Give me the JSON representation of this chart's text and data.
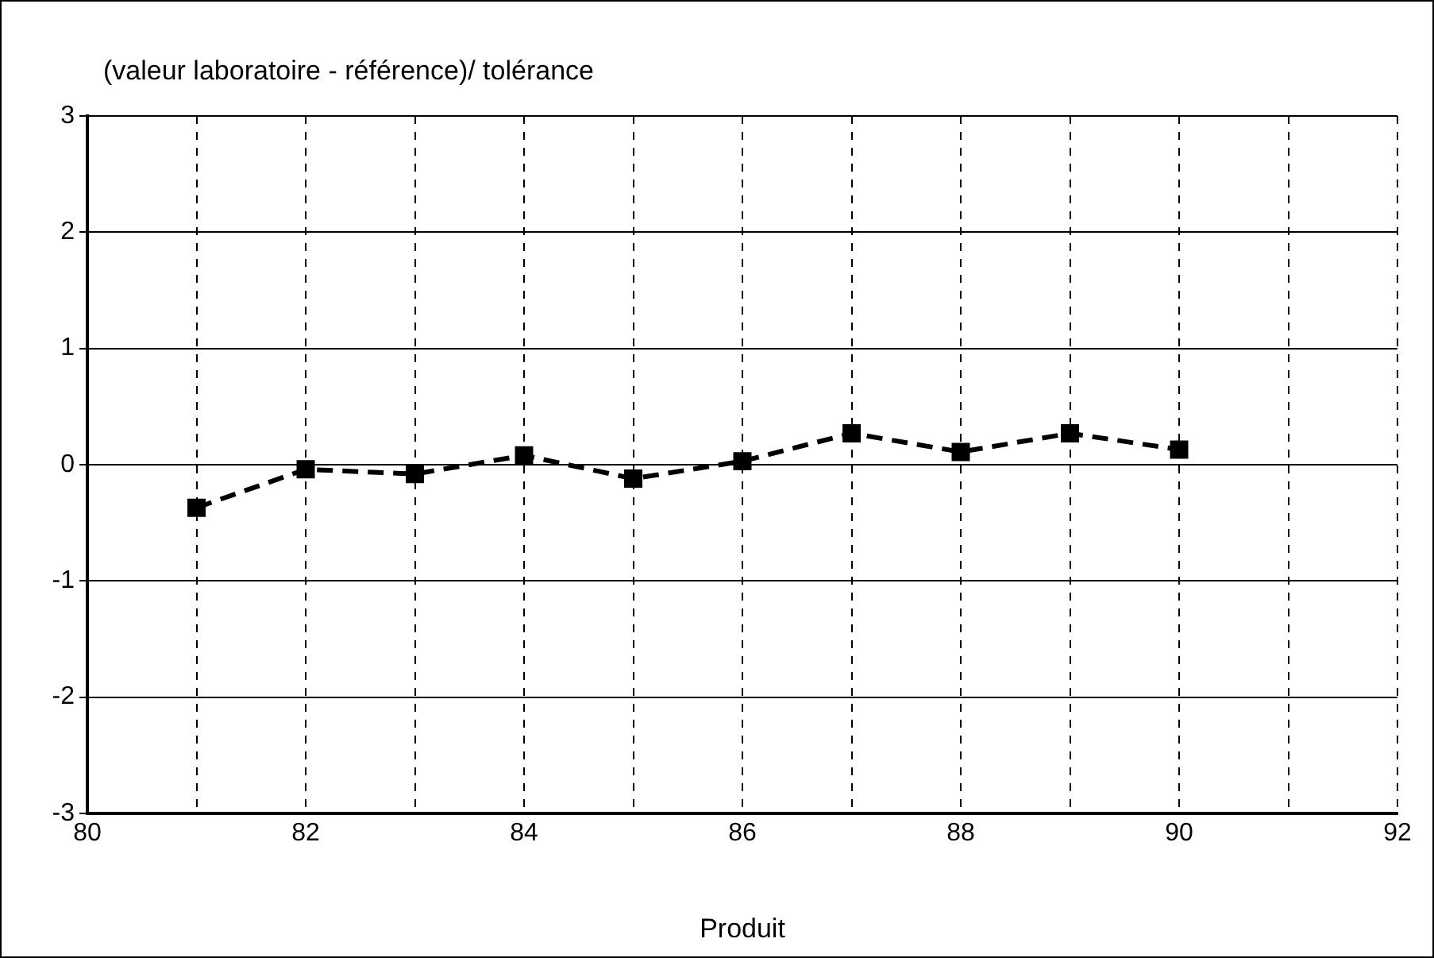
{
  "chart_data": {
    "type": "line",
    "ylabel": "(valeur laboratoire - référence)/ tolérance",
    "xlabel": "Produit",
    "x": [
      81,
      82,
      83,
      84,
      85,
      86,
      87,
      88,
      89,
      90
    ],
    "series": [
      {
        "color": "#000000",
        "values": [
          -0.37,
          -0.04,
          -0.08,
          0.08,
          -0.12,
          0.03,
          0.27,
          0.11,
          0.27,
          0.13
        ]
      }
    ],
    "xlim": [
      80,
      92
    ],
    "xticks": [
      80,
      {
        "value": 81,
        "label": null
      },
      82,
      {
        "value": 83,
        "label": null
      },
      84,
      {
        "value": 85,
        "label": null
      },
      86,
      {
        "value": 87,
        "label": null
      },
      88,
      {
        "value": 89,
        "label": null
      },
      90,
      {
        "value": 91,
        "label": null
      },
      92
    ],
    "ylim": [
      -3,
      3
    ],
    "yticks": [
      -3,
      -2,
      -1,
      0,
      1,
      2,
      3
    ],
    "grid": true,
    "legend": false,
    "marker": "square",
    "line_style": "dashed"
  }
}
